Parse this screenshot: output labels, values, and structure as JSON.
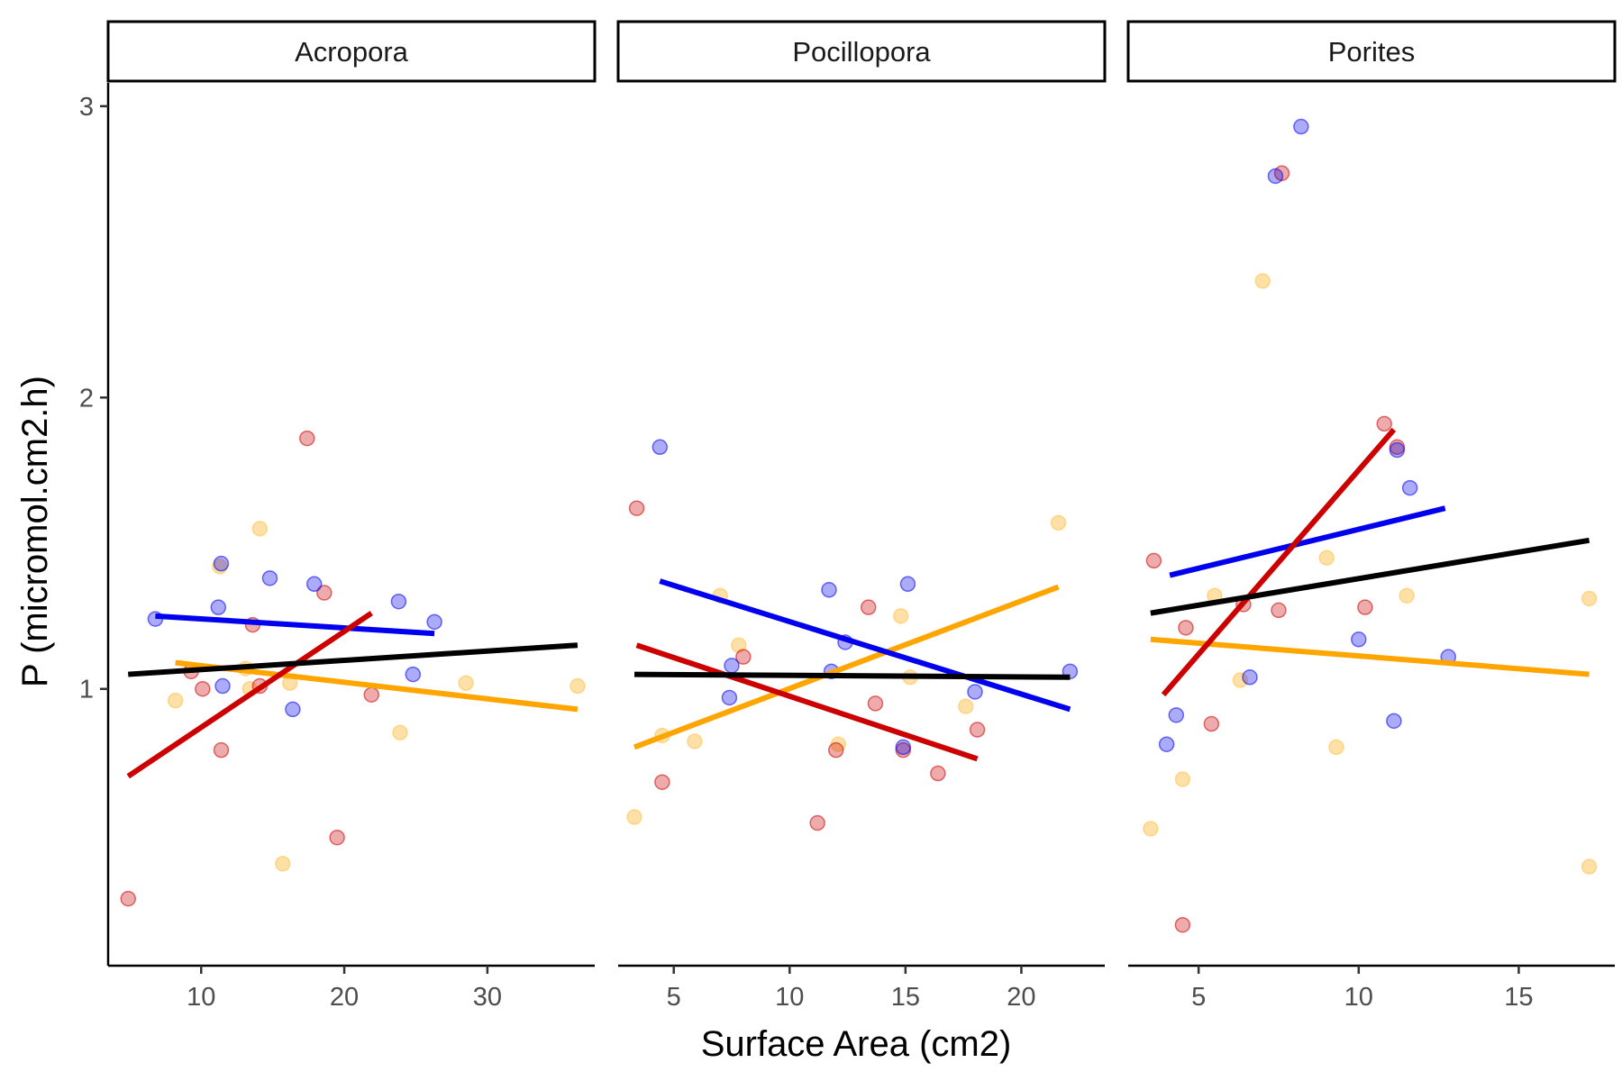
{
  "chart_data": {
    "type": "scatter",
    "xlabel": "Surface Area (cm2)",
    "ylabel": "P (micromol.cm2.h)",
    "ylim": [
      0.05,
      3.08
    ],
    "yticks": [
      1,
      2,
      3
    ],
    "grid": false,
    "legend": "none",
    "colors": {
      "blue": "#0000ee",
      "red": "#cc0000",
      "orange": "#ffa500",
      "black": "#000000"
    },
    "panels": [
      {
        "label": "Acropora",
        "xlim": [
          3.5,
          37.5
        ],
        "xticks": [
          10,
          20,
          30
        ],
        "points": {
          "blue": [
            [
              6.8,
              1.24
            ],
            [
              11.4,
              1.43
            ],
            [
              11.2,
              1.28
            ],
            [
              14.8,
              1.38
            ],
            [
              17.9,
              1.36
            ],
            [
              23.8,
              1.3
            ],
            [
              26.3,
              1.23
            ],
            [
              24.8,
              1.05
            ],
            [
              11.5,
              1.01
            ],
            [
              16.4,
              0.93
            ]
          ],
          "red": [
            [
              4.9,
              0.28
            ],
            [
              9.3,
              1.06
            ],
            [
              10.1,
              1.0
            ],
            [
              11.4,
              0.79
            ],
            [
              13.6,
              1.22
            ],
            [
              14.1,
              1.01
            ],
            [
              17.4,
              1.86
            ],
            [
              18.6,
              1.33
            ],
            [
              19.5,
              0.49
            ],
            [
              21.9,
              0.98
            ]
          ],
          "orange": [
            [
              11.3,
              1.42
            ],
            [
              8.2,
              0.96
            ],
            [
              13.1,
              1.07
            ],
            [
              13.4,
              1.0
            ],
            [
              14.1,
              1.55
            ],
            [
              16.2,
              1.02
            ],
            [
              15.7,
              0.4
            ],
            [
              23.9,
              0.85
            ],
            [
              28.5,
              1.02
            ],
            [
              36.3,
              1.01
            ]
          ]
        },
        "fits": {
          "blue": [
            [
              6.8,
              1.25
            ],
            [
              26.3,
              1.19
            ]
          ],
          "red": [
            [
              4.9,
              0.7
            ],
            [
              21.9,
              1.26
            ]
          ],
          "orange": [
            [
              8.2,
              1.09
            ],
            [
              36.3,
              0.93
            ]
          ],
          "black": [
            [
              4.9,
              1.05
            ],
            [
              36.3,
              1.15
            ]
          ]
        }
      },
      {
        "label": "Pocillopora",
        "xlim": [
          2.6,
          23.6
        ],
        "xticks": [
          5,
          10,
          15,
          20
        ],
        "points": {
          "blue": [
            [
              4.4,
              1.83
            ],
            [
              7.5,
              1.08
            ],
            [
              7.4,
              0.97
            ],
            [
              11.7,
              1.34
            ],
            [
              11.8,
              1.06
            ],
            [
              12.4,
              1.16
            ],
            [
              15.1,
              1.36
            ],
            [
              14.9,
              0.8
            ],
            [
              18.0,
              0.99
            ],
            [
              22.1,
              1.06
            ]
          ],
          "red": [
            [
              3.4,
              1.62
            ],
            [
              4.5,
              0.68
            ],
            [
              8.0,
              1.11
            ],
            [
              11.2,
              0.54
            ],
            [
              12.0,
              0.79
            ],
            [
              13.4,
              1.28
            ],
            [
              13.7,
              0.95
            ],
            [
              14.9,
              0.79
            ],
            [
              16.4,
              0.71
            ],
            [
              18.1,
              0.86
            ]
          ],
          "orange": [
            [
              3.3,
              0.56
            ],
            [
              4.5,
              0.84
            ],
            [
              5.9,
              0.82
            ],
            [
              7.0,
              1.32
            ],
            [
              7.8,
              1.15
            ],
            [
              12.1,
              0.81
            ],
            [
              14.8,
              1.25
            ],
            [
              15.2,
              1.04
            ],
            [
              17.6,
              0.94
            ],
            [
              21.6,
              1.57
            ]
          ]
        },
        "fits": {
          "blue": [
            [
              4.4,
              1.37
            ],
            [
              22.1,
              0.93
            ]
          ],
          "red": [
            [
              3.4,
              1.15
            ],
            [
              18.1,
              0.76
            ]
          ],
          "orange": [
            [
              3.3,
              0.8
            ],
            [
              21.6,
              1.35
            ]
          ],
          "black": [
            [
              3.3,
              1.05
            ],
            [
              22.1,
              1.04
            ]
          ]
        }
      },
      {
        "label": "Porites",
        "xlim": [
          2.8,
          18.0
        ],
        "xticks": [
          5,
          10,
          15
        ],
        "points": {
          "blue": [
            [
              8.2,
              2.93
            ],
            [
              7.4,
              2.76
            ],
            [
              11.2,
              1.82
            ],
            [
              11.6,
              1.69
            ],
            [
              10.0,
              1.17
            ],
            [
              12.8,
              1.11
            ],
            [
              6.6,
              1.04
            ],
            [
              4.3,
              0.91
            ],
            [
              4.0,
              0.81
            ],
            [
              11.1,
              0.89
            ]
          ],
          "red": [
            [
              3.6,
              1.44
            ],
            [
              7.6,
              2.77
            ],
            [
              10.8,
              1.91
            ],
            [
              11.2,
              1.83
            ],
            [
              10.2,
              1.28
            ],
            [
              7.5,
              1.27
            ],
            [
              6.4,
              1.29
            ],
            [
              4.6,
              1.21
            ],
            [
              5.4,
              0.88
            ],
            [
              4.5,
              0.19
            ]
          ],
          "orange": [
            [
              7.0,
              2.4
            ],
            [
              9.0,
              1.45
            ],
            [
              5.5,
              1.32
            ],
            [
              11.5,
              1.32
            ],
            [
              6.3,
              1.03
            ],
            [
              9.3,
              0.8
            ],
            [
              4.5,
              0.69
            ],
            [
              3.5,
              0.52
            ],
            [
              17.2,
              1.31
            ],
            [
              17.2,
              0.39
            ]
          ]
        },
        "fits": {
          "blue": [
            [
              4.1,
              1.39
            ],
            [
              12.7,
              1.62
            ]
          ],
          "red": [
            [
              3.9,
              0.98
            ],
            [
              11.1,
              1.89
            ]
          ],
          "orange": [
            [
              3.5,
              1.17
            ],
            [
              17.2,
              1.05
            ]
          ],
          "black": [
            [
              3.5,
              1.26
            ],
            [
              17.2,
              1.51
            ]
          ]
        }
      }
    ]
  }
}
